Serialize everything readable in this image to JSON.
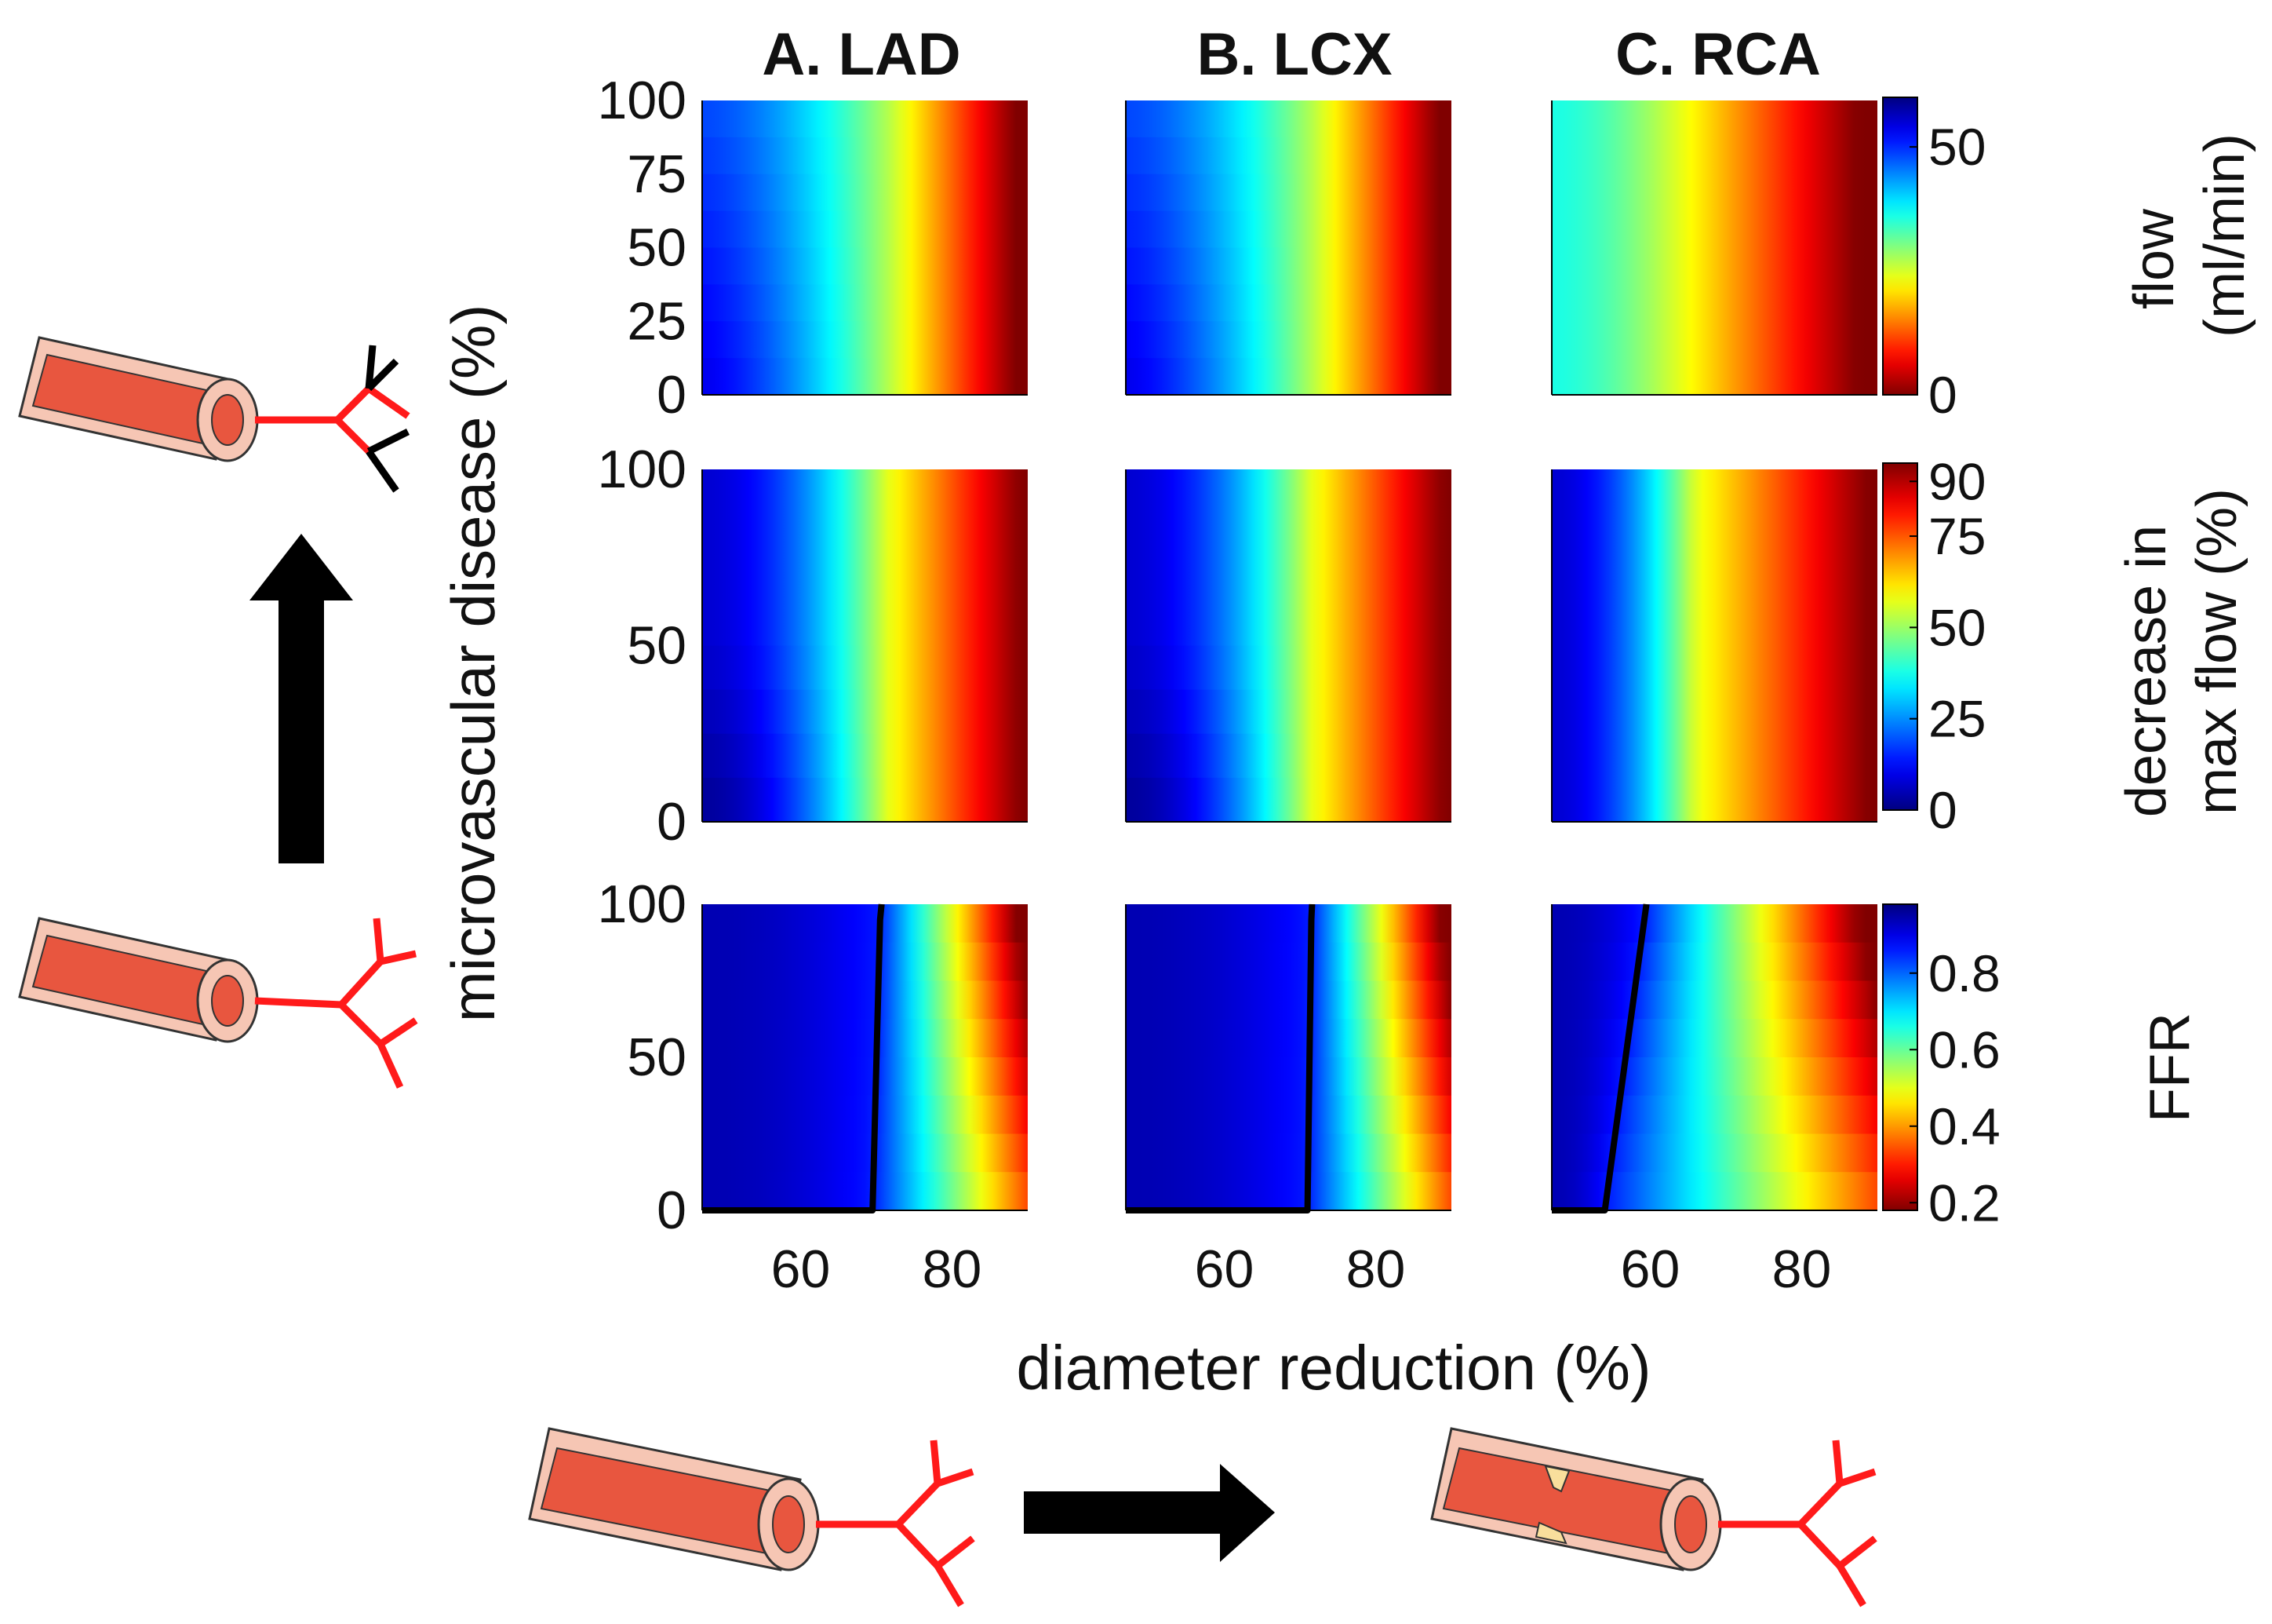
{
  "chart_data": {
    "type": "heatmap",
    "columns": [
      {
        "key": "lad",
        "title": "A. LAD"
      },
      {
        "key": "lcx",
        "title": "B. LCX"
      },
      {
        "key": "rca",
        "title": "C. RCA"
      }
    ],
    "xlabel": "diameter reduction (%)",
    "ylabel": "microvascular disease (%)",
    "xlim": [
      47,
      90
    ],
    "x_ticks": [
      "60",
      "80"
    ],
    "x_tick_values": [
      60,
      80
    ],
    "rows": [
      {
        "metric": "flow",
        "colorbar_label_lines": [
          "flow",
          "(ml/min)"
        ],
        "colorbar_ticks": [
          "0",
          "50"
        ],
        "colorbar_tick_values": [
          0,
          50
        ],
        "colorbar_range": [
          0,
          60
        ],
        "colormap": "jet_reversed",
        "ylim": [
          0,
          100
        ],
        "y_ticks": [
          "0",
          "25",
          "50",
          "75",
          "100"
        ],
        "y_tick_values": [
          0,
          25,
          50,
          75,
          100
        ],
        "transition_diameter": {
          "lad": [
            70,
            71
          ],
          "lcx": [
            70,
            72
          ],
          "rca": [
            60,
            62
          ]
        }
      },
      {
        "metric": "decrease in max flow",
        "colorbar_label_lines": [
          "decrease in",
          "max flow (%)"
        ],
        "colorbar_ticks": [
          "0",
          "25",
          "50",
          "75",
          "90"
        ],
        "colorbar_tick_values": [
          0,
          25,
          50,
          75,
          90
        ],
        "colorbar_range": [
          0,
          95
        ],
        "colormap": "jet",
        "ylim": [
          0,
          100
        ],
        "y_ticks": [
          "0",
          "50",
          "100"
        ],
        "y_tick_values": [
          0,
          50,
          100
        ],
        "transition_diameter": {
          "lad": [
            70,
            71
          ],
          "lcx": [
            71,
            72
          ],
          "rca": [
            65,
            66
          ]
        }
      },
      {
        "metric": "FFR",
        "colorbar_label_lines": [
          "FFR"
        ],
        "colorbar_ticks": [
          "0.2",
          "0.4",
          "0.6",
          "0.8"
        ],
        "colorbar_tick_values": [
          0.2,
          0.4,
          0.6,
          0.8
        ],
        "colorbar_range": [
          0.18,
          0.98
        ],
        "colormap": "jet_reversed",
        "ylim": [
          0,
          100
        ],
        "y_ticks": [
          "0",
          "50",
          "100"
        ],
        "y_tick_values": [
          0,
          50,
          100
        ],
        "ffr_threshold_contour": {
          "lad": {
            "x": [
              47,
              69.5,
              70.5,
              70.7
            ],
            "y": [
              0,
              0,
              95,
              100
            ]
          },
          "lcx": {
            "x": [
              47,
              71,
              71.5,
              71.6
            ],
            "y": [
              0,
              0,
              95,
              100
            ]
          },
          "rca": {
            "x": [
              47,
              54,
              59.5
            ],
            "y": [
              0,
              0,
              100
            ]
          }
        }
      }
    ],
    "legend_illustrations": [
      "vessel with healthy microvasculature",
      "vessel with microvascular disease",
      "vessel without stenosis",
      "vessel with stenosis"
    ]
  }
}
